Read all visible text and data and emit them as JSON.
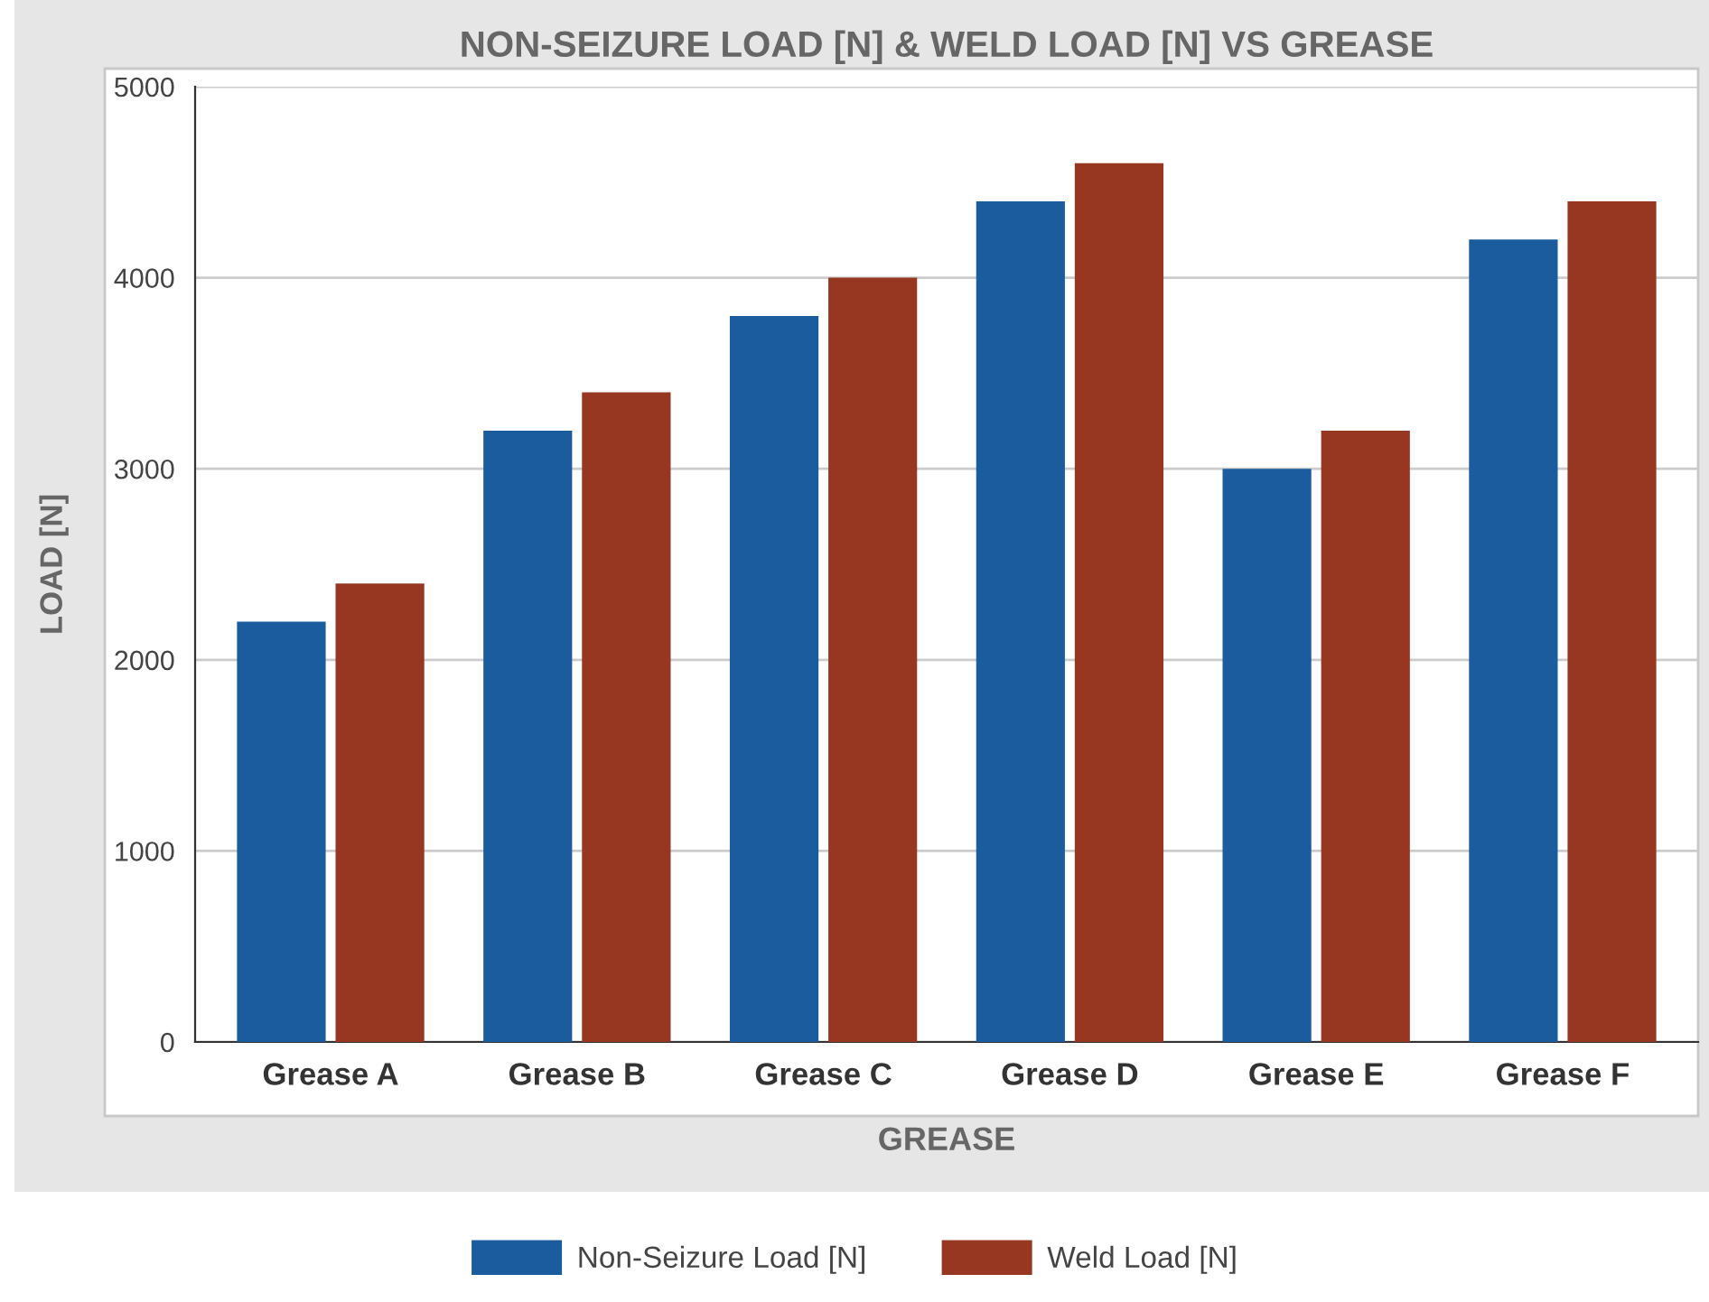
{
  "chart_data": {
    "type": "bar",
    "title": "NON-SEIZURE LOAD [N] & WELD LOAD [N] VS GREASE",
    "xlabel": "GREASE",
    "ylabel": "LOAD [N]",
    "categories": [
      "Grease A",
      "Grease B",
      "Grease C",
      "Grease D",
      "Grease E",
      "Grease F"
    ],
    "series": [
      {
        "name": "Non-Seizure Load [N]",
        "color": "#1a5c9e",
        "values": [
          2200,
          3200,
          3800,
          4400,
          3000,
          4200
        ]
      },
      {
        "name": "Weld Load [N]",
        "color": "#973722",
        "values": [
          2400,
          3400,
          4000,
          4600,
          3200,
          4400
        ]
      }
    ],
    "ylim": [
      0,
      5000
    ],
    "yticks": [
      0,
      1000,
      2000,
      3000,
      4000,
      5000
    ],
    "grid": "y",
    "legend": "bottom"
  }
}
